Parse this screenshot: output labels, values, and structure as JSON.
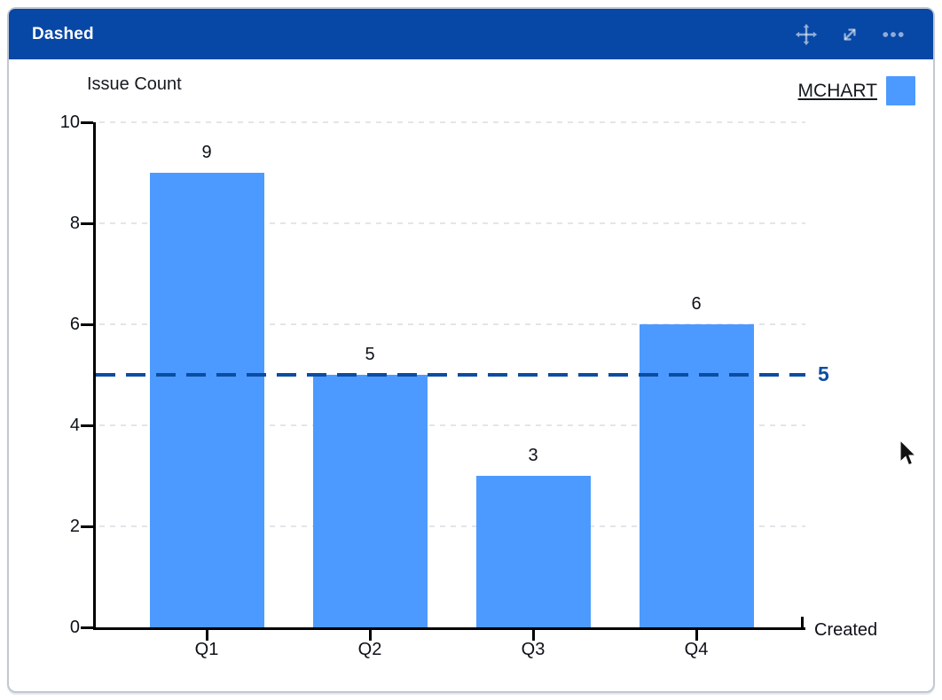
{
  "widget": {
    "title": "Dashed",
    "header_color": "#0747A6",
    "header_icons": [
      "move-icon",
      "expand-icon",
      "more-options-icon"
    ]
  },
  "legend": {
    "label": "MCHART",
    "swatch_color": "#4C9AFF"
  },
  "chart_data": {
    "type": "bar",
    "title": "Dashed",
    "ylabel": "Issue Count",
    "xlabel": "Created",
    "categories": [
      "Q1",
      "Q2",
      "Q3",
      "Q4"
    ],
    "values": [
      9,
      5,
      3,
      6
    ],
    "bar_labels": [
      "9",
      "5",
      "3",
      "6"
    ],
    "ylim": [
      0,
      10
    ],
    "yticks": [
      0,
      2,
      4,
      6,
      8,
      10
    ],
    "grid": "horizontal-dashed",
    "legend_position": "top-right",
    "bar_color": "#4C9AFF",
    "reference_line": {
      "value": 5,
      "label": "5",
      "color": "#0B4DA2",
      "style": "dashed"
    }
  }
}
